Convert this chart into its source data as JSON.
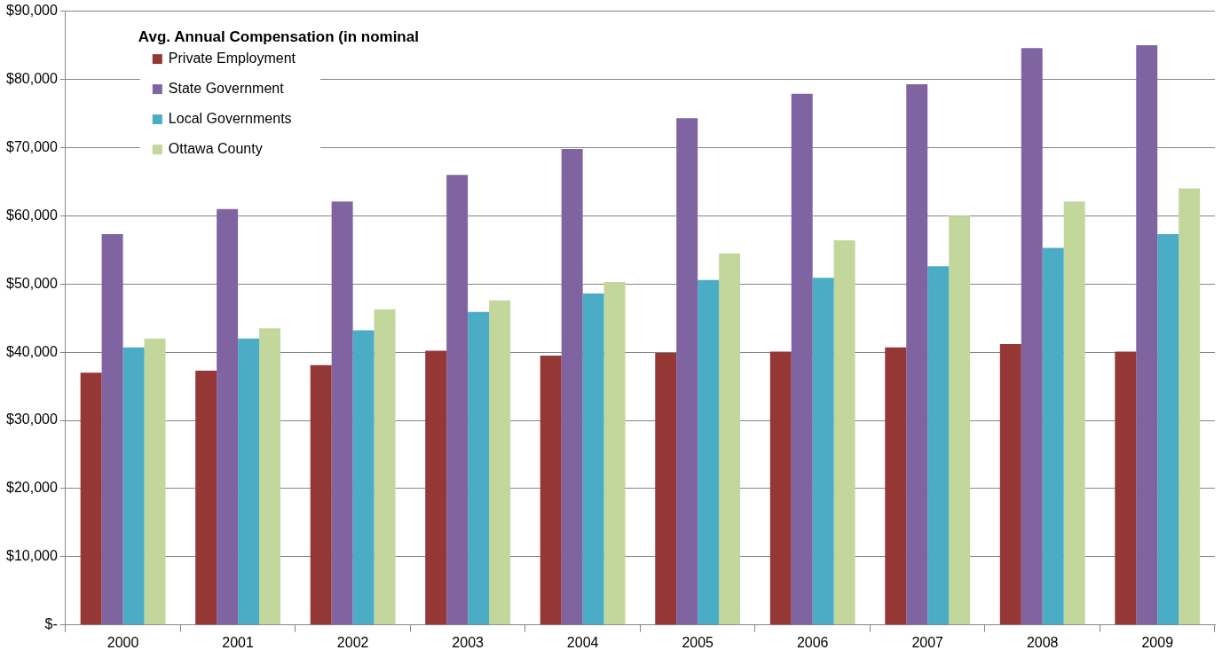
{
  "chart_data": {
    "type": "bar",
    "legend_title": "Avg. Annual Compensation (in nominal",
    "categories": [
      "2000",
      "2001",
      "2002",
      "2003",
      "2004",
      "2005",
      "2006",
      "2007",
      "2008",
      "2009"
    ],
    "series": [
      {
        "name": "Private Employment",
        "color": "#953735",
        "values": [
          37000,
          37300,
          38100,
          40200,
          39500,
          39900,
          40100,
          40700,
          41200,
          40100
        ]
      },
      {
        "name": "State Government",
        "color": "#8064a2",
        "values": [
          57300,
          61000,
          62100,
          66000,
          69800,
          74300,
          77900,
          79300,
          84600,
          85000
        ]
      },
      {
        "name": "Local Governments",
        "color": "#4bacc6",
        "values": [
          40700,
          42000,
          43200,
          45900,
          48600,
          50600,
          50900,
          52600,
          55300,
          57300
        ]
      },
      {
        "name": "Ottawa County",
        "color": "#c3d69b",
        "values": [
          42000,
          43500,
          46300,
          47600,
          50300,
          54500,
          56400,
          60000,
          62100,
          64000
        ]
      }
    ],
    "ylim": [
      0,
      90000
    ],
    "yticks": [
      {
        "value": 0,
        "label": "$-"
      },
      {
        "value": 10000,
        "label": "$10,000"
      },
      {
        "value": 20000,
        "label": "$20,000"
      },
      {
        "value": 30000,
        "label": "$30,000"
      },
      {
        "value": 40000,
        "label": "$40,000"
      },
      {
        "value": 50000,
        "label": "$50,000"
      },
      {
        "value": 60000,
        "label": "$60,000"
      },
      {
        "value": 70000,
        "label": "$70,000"
      },
      {
        "value": 80000,
        "label": "$80,000"
      },
      {
        "value": 90000,
        "label": "$90,000"
      }
    ],
    "grid": "y",
    "legend": "top left"
  }
}
